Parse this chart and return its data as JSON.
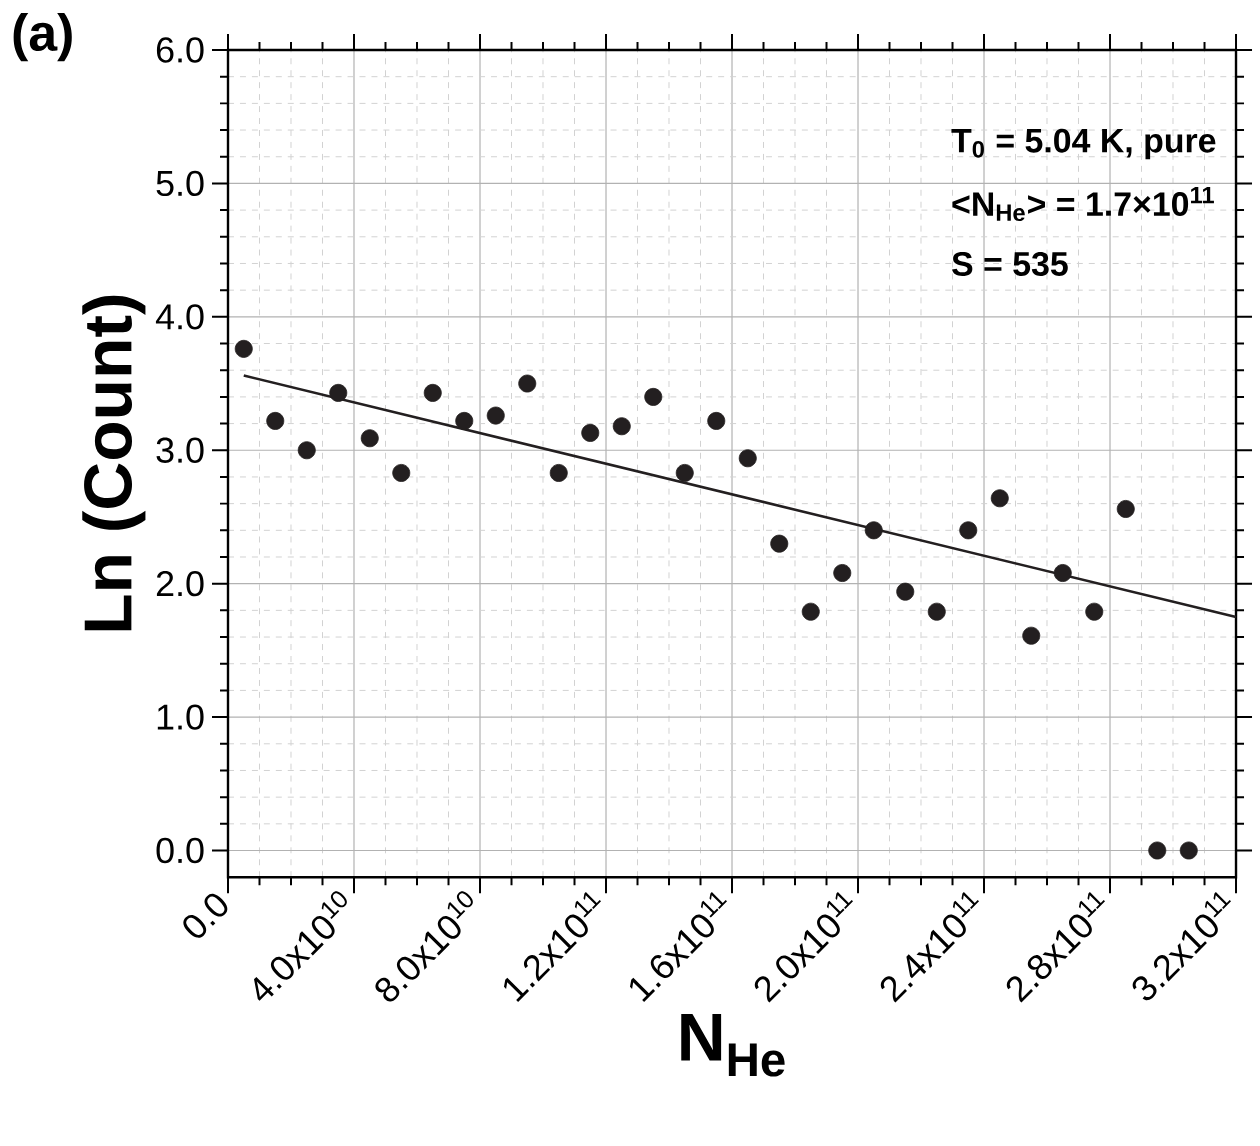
{
  "chart_data": {
    "type": "scatter",
    "xlabel": "N$_{He}$",
    "ylabel": "Ln (Count)",
    "annotations": [
      "(a)",
      "T$_{0}$ = 5.04 K, pure",
      "<N$_{He}$> = 1.7×10$^{11}$",
      "S = 535"
    ],
    "series": [
      {
        "marker": "circle",
        "color": "#231f20",
        "x": [
          5000000000.0,
          15000000000.0,
          25000000000.0,
          35000000000.0,
          45000000000.0,
          55000000000.0,
          65000000000.0,
          75000000000.0,
          85000000000.0,
          95000000000.0,
          105000000000.0,
          115000000000.0,
          125000000000.0,
          135000000000.0,
          145000000000.0,
          155000000000.0,
          165000000000.0,
          175000000000.0,
          185000000000.0,
          195000000000.0,
          205000000000.0,
          215000000000.0,
          225000000000.0,
          235000000000.0,
          245000000000.0,
          255000000000.0,
          265000000000.0,
          275000000000.0,
          285000000000.0,
          295000000000.0,
          305000000000.0
        ],
        "values": [
          3.76,
          3.22,
          3.0,
          3.43,
          3.09,
          2.83,
          3.43,
          3.22,
          3.26,
          3.5,
          2.83,
          3.13,
          3.18,
          3.4,
          2.83,
          3.22,
          2.94,
          2.3,
          1.79,
          2.08,
          2.4,
          1.94,
          1.79,
          2.4,
          2.64,
          1.61,
          2.08,
          1.79,
          2.56,
          0.0,
          0.0
        ]
      },
      {
        "type": "line",
        "marker": "none",
        "color": "#231f20",
        "x": [
          5000000000.0,
          320000000000.0
        ],
        "values": [
          3.56,
          1.75
        ]
      }
    ],
    "grid": true,
    "xlim": [
      0,
      320000000000.0
    ],
    "ylim": [
      -0.2,
      6.0
    ],
    "xticks": [
      {
        "value": 0,
        "label": "0.0"
      },
      {
        "value": 40000000000.0,
        "label": "4.0x10$^{10}$"
      },
      {
        "value": 80000000000.0,
        "label": "8.0x10$^{10}$"
      },
      {
        "value": 120000000000.0,
        "label": "1.2x10$^{11}$"
      },
      {
        "value": 160000000000.0,
        "label": "1.6x10$^{11}$"
      },
      {
        "value": 200000000000.0,
        "label": "2.0x10$^{11}$"
      },
      {
        "value": 240000000000.0,
        "label": "2.4x10$^{11}$"
      },
      {
        "value": 280000000000.0,
        "label": "2.8x10$^{11}$"
      },
      {
        "value": 320000000000.0,
        "label": "3.2x10$^{11}$"
      }
    ],
    "yticks": [
      {
        "value": 0,
        "label": "0.0"
      },
      {
        "value": 1,
        "label": "1.0"
      },
      {
        "value": 2,
        "label": "2.0"
      },
      {
        "value": 3,
        "label": "3.0"
      },
      {
        "value": 4,
        "label": "4.0"
      },
      {
        "value": 5,
        "label": "5.0"
      },
      {
        "value": 6,
        "label": "6.0"
      }
    ]
  }
}
